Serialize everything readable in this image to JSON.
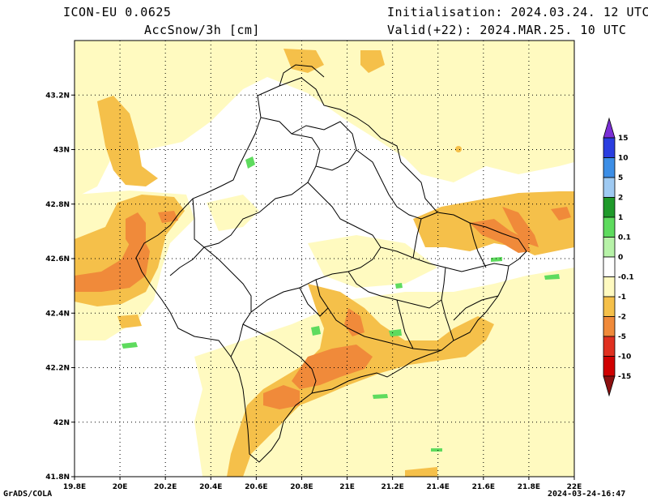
{
  "header": {
    "model": "ICON-EU 0.0625",
    "variable": "AccSnow/3h [cm]",
    "init": "Initialisation: 2024.03.24. 12 UTC",
    "valid": "Valid(+22): 2024.MAR.25. 10 UTC"
  },
  "footer": {
    "left": "GrADS/COLA",
    "right": "2024-03-24-16:47"
  },
  "axes": {
    "x_ticks": [
      "19.8E",
      "20E",
      "20.2E",
      "20.4E",
      "20.6E",
      "20.8E",
      "21E",
      "21.2E",
      "21.4E",
      "21.6E",
      "21.8E",
      "22E"
    ],
    "y_ticks": [
      "41.8N",
      "42N",
      "42.2N",
      "42.4N",
      "42.6N",
      "42.8N",
      "43N",
      "43.2N"
    ],
    "lon_range": [
      19.8,
      22.0
    ],
    "lat_range": [
      41.8,
      43.4
    ],
    "grid": true
  },
  "colorbar": {
    "levels": [
      "15",
      "10",
      "5",
      "2",
      "1",
      "0.1",
      "0",
      "-0.1",
      "-1",
      "-2",
      "-5",
      "-10",
      "-15"
    ],
    "colors": [
      "#7b2fd6",
      "#2a3ee0",
      "#3c8ee6",
      "#9fcaf2",
      "#1f9a2a",
      "#5edb5e",
      "#b7f2a8",
      "#ffffff",
      "#fffac0",
      "#f5c04a",
      "#f08a3a",
      "#e03020",
      "#d00000",
      "#8c1010"
    ]
  },
  "fill_colors": {
    "light_yellow": "#fffac0",
    "orange": "#f5c04a",
    "dark_orange": "#f08a3a",
    "red": "#e03020",
    "light_green": "#5edb5e"
  }
}
